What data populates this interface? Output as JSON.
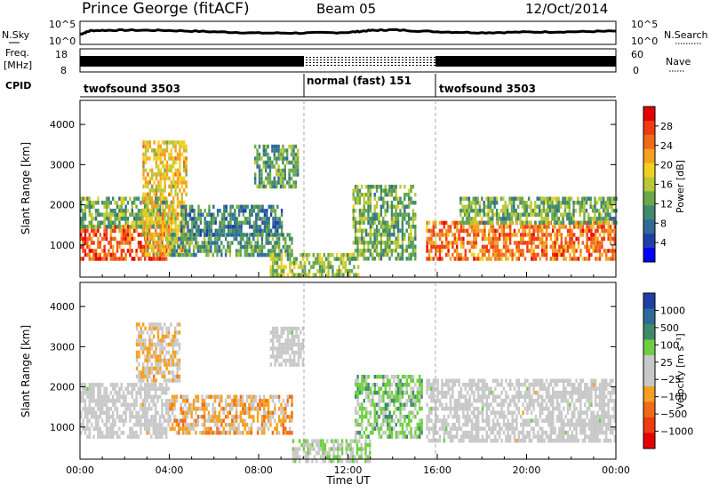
{
  "header": {
    "title": "Prince George (fitACF)",
    "beam": "Beam 05",
    "date": "12/Oct/2014"
  },
  "noise_panel": {
    "left_label": "N.Sky",
    "right_label": "N.Search",
    "left_ticks": [
      "10^5",
      "10^0"
    ],
    "right_ticks": [
      "10^5",
      "10^0"
    ]
  },
  "freq_panel": {
    "left_label_1": "Freq.",
    "left_label_2": "[MHz]",
    "left_ticks": [
      "18",
      "8"
    ],
    "right_label": "Nave",
    "right_ticks": [
      "60",
      "0"
    ]
  },
  "cpid": {
    "label": "CPID",
    "segments": [
      {
        "label": "twofsound 3503",
        "start_hour": 0,
        "end_hour": 10
      },
      {
        "label": "normal (fast) 151",
        "start_hour": 10,
        "end_hour": 16
      },
      {
        "label": "twofsound 3503",
        "start_hour": 16,
        "end_hour": 24
      }
    ]
  },
  "x_axis": {
    "label": "Time UT",
    "ticks": [
      "00:00",
      "04:00",
      "08:00",
      "12:00",
      "16:00",
      "20:00",
      "00:00"
    ],
    "range_hours": [
      0,
      24
    ]
  },
  "power_panel": {
    "ylabel": "Slant Range [km]",
    "yticks": [
      "1000",
      "2000",
      "3000",
      "4000"
    ],
    "colorbar_label": "Power [dB]",
    "colorbar_ticks": [
      "4",
      "8",
      "12",
      "16",
      "20",
      "24",
      "28"
    ]
  },
  "velocity_panel": {
    "ylabel": "Slant Range [km]",
    "yticks": [
      "1000",
      "2000",
      "3000",
      "4000"
    ],
    "colorbar_label": "Velocity [m s⁻¹]",
    "colorbar_ticks": [
      "1000",
      "500",
      "100",
      "25",
      "−25",
      "−100",
      "−500",
      "−1000"
    ]
  },
  "colors": {
    "power_scale": [
      "#0000ff",
      "#1f3fa8",
      "#2f6a9a",
      "#3f8a6a",
      "#6aa84a",
      "#b8c838",
      "#f0d020",
      "#f5a020",
      "#f06a18",
      "#f03a10",
      "#e60000"
    ],
    "velocity_scale": [
      "#1f3fa8",
      "#2f6a9a",
      "#3f8a6a",
      "#6dcf3f",
      "#c8c8c8",
      "#c8c8c8",
      "#f5a020",
      "#f06a18",
      "#f03a10",
      "#e60000"
    ]
  },
  "chart_data": [
    {
      "type": "line",
      "title": "N.Sky / N.Search",
      "x": [
        0,
        0.5,
        2,
        4,
        6,
        8,
        10,
        12,
        13,
        14,
        16,
        18,
        20,
        22,
        24
      ],
      "series": [
        {
          "name": "N.Sky",
          "values": [
            2.6,
            3.8,
            3.9,
            3.8,
            3.4,
            3.0,
            3.0,
            3.2,
            3.8,
            4.0,
            3.4,
            3.1,
            3.3,
            3.4,
            3.6
          ]
        }
      ]
    },
    {
      "type": "line",
      "title": "Freq. / Nave",
      "x": [
        0,
        10,
        16,
        24
      ],
      "series": [
        {
          "name": "Freq.",
          "values": [
            11.3,
            11.3,
            11.3,
            11.3
          ]
        },
        {
          "name": "Nave",
          "values": [
            30,
            10,
            30,
            30
          ]
        }
      ]
    },
    {
      "type": "heatmap",
      "title": "Power [dB]",
      "xlabel": "Time UT",
      "ylabel": "Slant Range [km]",
      "xlim": [
        0,
        24
      ],
      "ylim": [
        200,
        4600
      ],
      "colorbar_range": [
        0,
        30
      ],
      "regions": [
        {
          "x0": 0.0,
          "x1": 4.0,
          "y0": 700,
          "y1": 1500,
          "value": 26
        },
        {
          "x0": 0.0,
          "x1": 4.0,
          "y0": 1500,
          "y1": 2200,
          "value": 12
        },
        {
          "x0": 2.8,
          "x1": 4.8,
          "y0": 800,
          "y1": 3600,
          "value": 18
        },
        {
          "x0": 4.0,
          "x1": 9.5,
          "y0": 800,
          "y1": 1300,
          "value": 10
        },
        {
          "x0": 4.5,
          "x1": 9.0,
          "y0": 1300,
          "y1": 2000,
          "value": 8
        },
        {
          "x0": 7.8,
          "x1": 9.8,
          "y0": 2500,
          "y1": 3500,
          "value": 10
        },
        {
          "x0": 8.5,
          "x1": 12.5,
          "y0": 300,
          "y1": 800,
          "value": 14
        },
        {
          "x0": 12.2,
          "x1": 15.0,
          "y0": 700,
          "y1": 2500,
          "value": 12
        },
        {
          "x0": 15.5,
          "x1": 24.0,
          "y0": 700,
          "y1": 1600,
          "value": 24
        },
        {
          "x0": 17.0,
          "x1": 24.0,
          "y0": 1600,
          "y1": 2200,
          "value": 12
        }
      ]
    },
    {
      "type": "heatmap",
      "title": "Velocity [m s⁻¹]",
      "xlabel": "Time UT",
      "ylabel": "Slant Range [km]",
      "xlim": [
        0,
        24
      ],
      "ylim": [
        200,
        4600
      ],
      "colorbar_range": [
        -1000,
        1000
      ],
      "regions": [
        {
          "x0": 0.0,
          "x1": 4.0,
          "y0": 800,
          "y1": 2100,
          "value": 0
        },
        {
          "x0": 4.0,
          "x1": 9.5,
          "y0": 900,
          "y1": 1800,
          "value": -300
        },
        {
          "x0": 2.5,
          "x1": 4.5,
          "y0": 2200,
          "y1": 3600,
          "value": -200
        },
        {
          "x0": 8.5,
          "x1": 10.0,
          "y0": 2600,
          "y1": 3500,
          "value": 0
        },
        {
          "x0": 9.5,
          "x1": 13.0,
          "y0": 200,
          "y1": 700,
          "value": 150
        },
        {
          "x0": 12.3,
          "x1": 15.3,
          "y0": 800,
          "y1": 2300,
          "value": 300
        },
        {
          "x0": 15.5,
          "x1": 24.0,
          "y0": 700,
          "y1": 2200,
          "value": 0
        }
      ]
    }
  ]
}
